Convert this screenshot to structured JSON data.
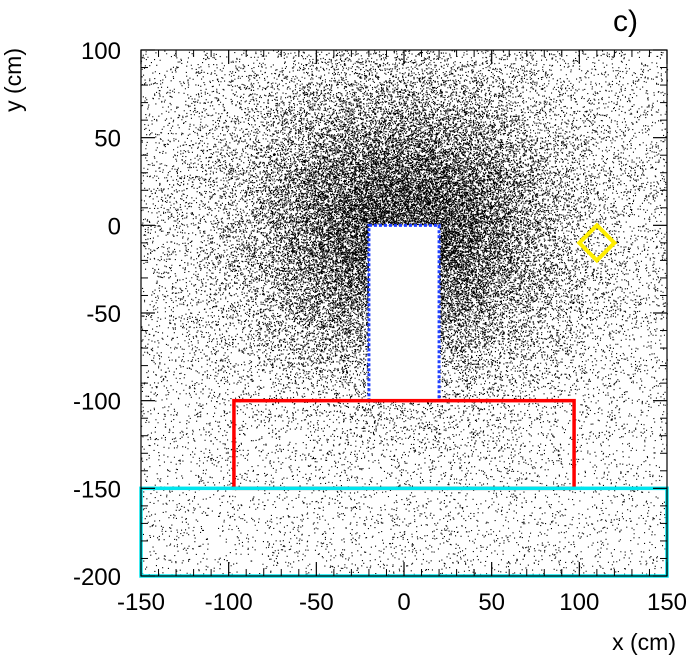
{
  "chart_data": {
    "type": "scatter",
    "panel_label": "c)",
    "xlabel": "x (cm)",
    "ylabel": "y (cm)",
    "xlim": [
      -150,
      150
    ],
    "ylim": [
      -200,
      100
    ],
    "x_ticks": [
      -150,
      -100,
      -50,
      0,
      50,
      100,
      150
    ],
    "y_ticks": [
      -200,
      -150,
      -100,
      -50,
      0,
      50,
      100
    ],
    "grid": false,
    "legend": "none",
    "point_color": "#000000",
    "distribution": {
      "description_values": {
        "center": [
          0,
          0
        ],
        "density_falloff_radius": 70
      }
    },
    "regions": [
      {
        "shape": "rect",
        "x": [
          -20,
          20
        ],
        "y": [
          -100,
          0
        ],
        "fill": "#ffffff",
        "stroke": "#1f3fff",
        "dashed": true
      },
      {
        "shape": "rect",
        "x": [
          -97,
          97
        ],
        "y": [
          -150,
          -100
        ],
        "fill": "none",
        "stroke": "#ff0000",
        "dashed": false
      },
      {
        "shape": "rect",
        "x": [
          -150,
          150
        ],
        "y": [
          -200,
          -150
        ],
        "fill": "none",
        "stroke": "#00e5ee",
        "dashed": false
      },
      {
        "shape": "diamond",
        "center": [
          110,
          -10
        ],
        "half_diagonal": 10,
        "fill": "none",
        "stroke": "#ffee00",
        "dashed": false
      }
    ]
  }
}
